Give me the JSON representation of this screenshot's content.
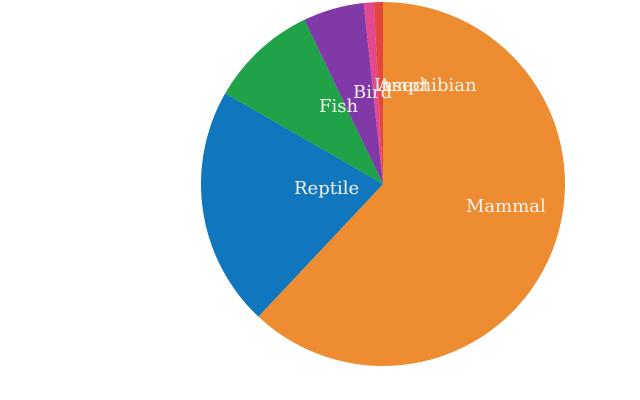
{
  "chart_data": {
    "type": "pie",
    "title": "",
    "categories": [
      "Mammal",
      "Reptile",
      "Fish",
      "Bird",
      "Insect",
      "Amphibian"
    ],
    "values": [
      62.0,
      21.3,
      9.6,
      5.4,
      0.9,
      0.8
    ],
    "unit": "percent",
    "colors": [
      "#ED8C31",
      "#1076BE",
      "#20A249",
      "#8239A8",
      "#E2498F",
      "#E2463E"
    ],
    "direction": "clockwise",
    "start": "12-oclock",
    "labels_inside": true,
    "label_color": "#F7F3EC",
    "legend": "none",
    "background": "#FFFFFF"
  }
}
